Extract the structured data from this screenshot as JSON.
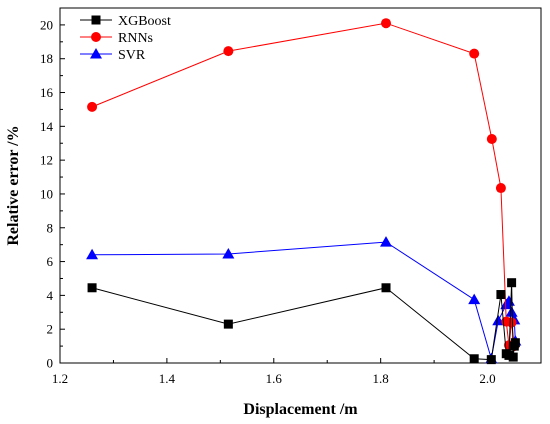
{
  "chart_data": {
    "type": "line",
    "xlabel": "Displacement /m",
    "ylabel": "Relative error /%",
    "xlim": [
      1.2,
      2.1
    ],
    "ylim": [
      0,
      21
    ],
    "xticks": [
      "1.2",
      "1.4",
      "1.6",
      "1.8",
      "2.0"
    ],
    "yticks": [
      "0",
      "2",
      "4",
      "6",
      "8",
      "10",
      "12",
      "14",
      "16",
      "18",
      "20"
    ],
    "grid": false,
    "legend_position": "top-left",
    "series": [
      {
        "name": "XGBoost",
        "color": "#000000",
        "marker": "square",
        "x": [
          1.26,
          1.515,
          1.81,
          1.975,
          2.007,
          2.025,
          2.035,
          2.04,
          2.045,
          2.048,
          2.05,
          2.052
        ],
        "y": [
          4.45,
          2.3,
          4.45,
          0.25,
          0.2,
          4.05,
          0.55,
          0.45,
          4.75,
          0.35,
          1.0,
          1.2
        ]
      },
      {
        "name": "RNNs",
        "color": "#ff0000",
        "marker": "circle",
        "x": [
          1.26,
          1.515,
          1.81,
          1.975,
          2.008,
          2.025,
          2.035,
          2.04,
          2.045,
          2.05
        ],
        "y": [
          15.15,
          18.45,
          20.1,
          18.3,
          13.25,
          10.35,
          2.45,
          1.05,
          2.4,
          1.0
        ]
      },
      {
        "name": "SVR",
        "color": "#0000ff",
        "marker": "triangle",
        "x": [
          1.26,
          1.515,
          1.81,
          1.975,
          2.007,
          2.02,
          2.035,
          2.04,
          2.045,
          2.05,
          2.052
        ],
        "y": [
          6.4,
          6.45,
          7.15,
          3.75,
          0.25,
          2.5,
          3.45,
          3.65,
          3.0,
          2.55,
          1.3
        ]
      }
    ]
  }
}
